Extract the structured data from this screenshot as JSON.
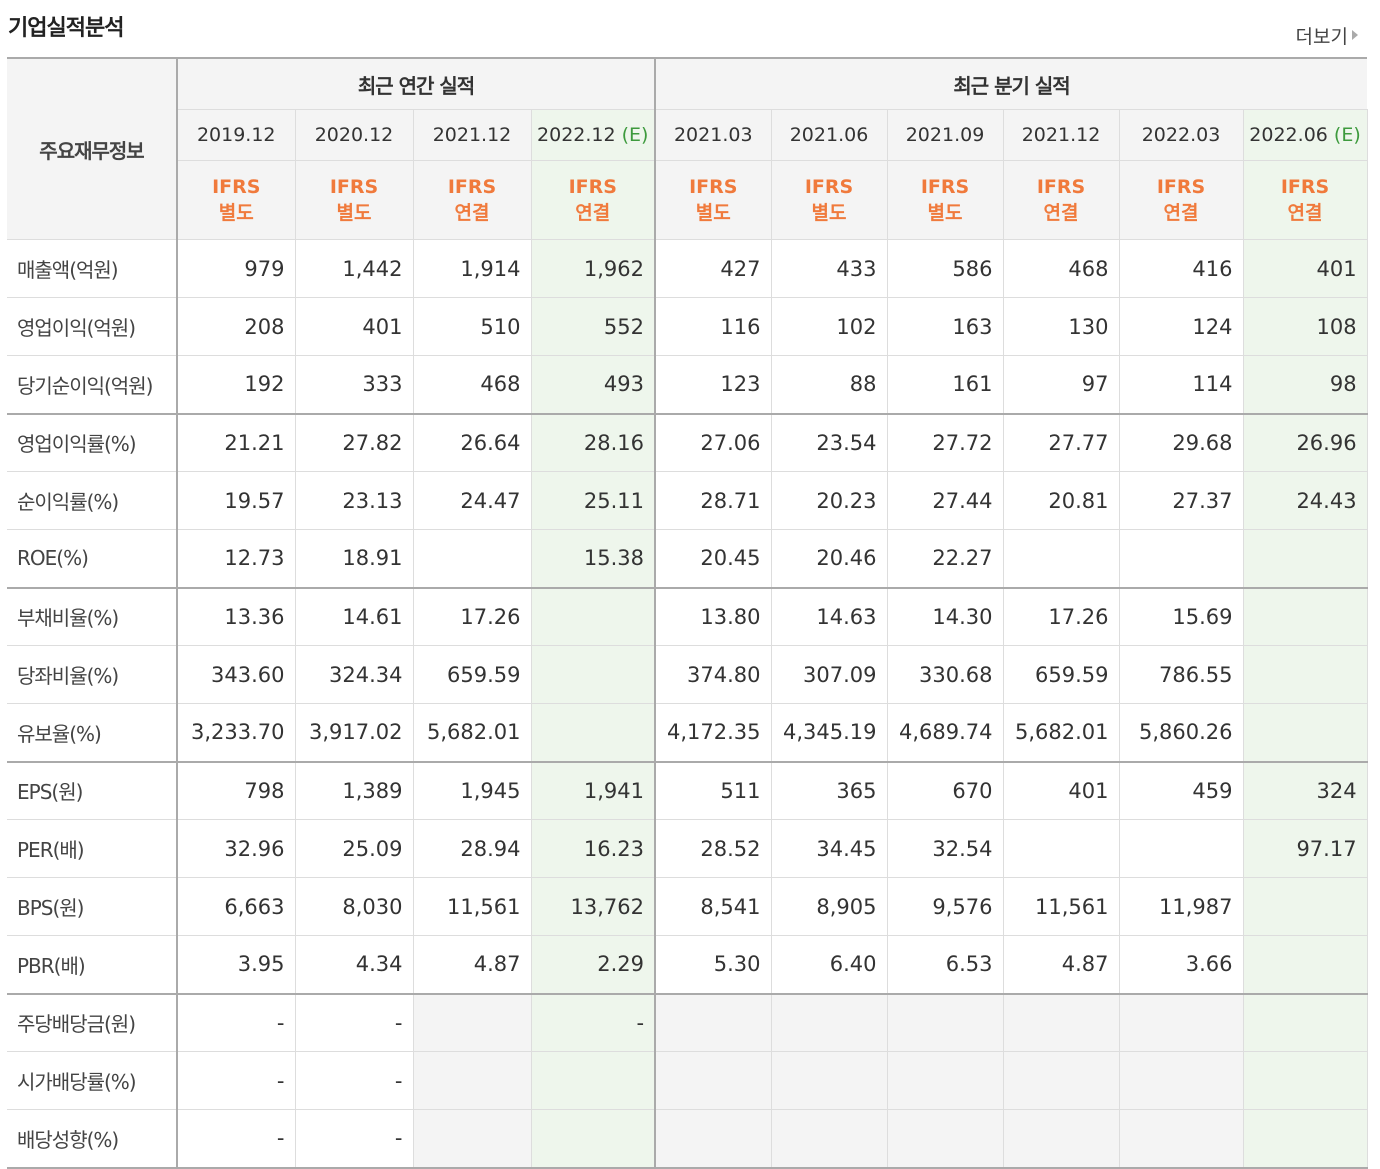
{
  "header": {
    "title": "기업실적분석",
    "more_label": "더보기"
  },
  "table": {
    "side_header": "주요재무정보",
    "annual_label": "최근 연간 실적",
    "quarter_label": "최근 분기 실적",
    "annual_periods": [
      {
        "date": "2019.12",
        "est": "",
        "type1": "IFRS",
        "type2": "별도"
      },
      {
        "date": "2020.12",
        "est": "",
        "type1": "IFRS",
        "type2": "별도"
      },
      {
        "date": "2021.12",
        "est": "",
        "type1": "IFRS",
        "type2": "연결"
      },
      {
        "date": "2022.12",
        "est": "(E)",
        "type1": "IFRS",
        "type2": "연결"
      }
    ],
    "quarter_periods": [
      {
        "date": "2021.03",
        "est": "",
        "type1": "IFRS",
        "type2": "별도"
      },
      {
        "date": "2021.06",
        "est": "",
        "type1": "IFRS",
        "type2": "별도"
      },
      {
        "date": "2021.09",
        "est": "",
        "type1": "IFRS",
        "type2": "별도"
      },
      {
        "date": "2021.12",
        "est": "",
        "type1": "IFRS",
        "type2": "연결"
      },
      {
        "date": "2022.03",
        "est": "",
        "type1": "IFRS",
        "type2": "연결"
      },
      {
        "date": "2022.06",
        "est": "(E)",
        "type1": "IFRS",
        "type2": "연결"
      }
    ],
    "rows": [
      {
        "label": "매출액(억원)",
        "values": [
          "979",
          "1,442",
          "1,914",
          "1,962",
          "427",
          "433",
          "586",
          "468",
          "416",
          "401"
        ]
      },
      {
        "label": "영업이익(억원)",
        "values": [
          "208",
          "401",
          "510",
          "552",
          "116",
          "102",
          "163",
          "130",
          "124",
          "108"
        ]
      },
      {
        "label": "당기순이익(억원)",
        "values": [
          "192",
          "333",
          "468",
          "493",
          "123",
          "88",
          "161",
          "97",
          "114",
          "98"
        ]
      },
      {
        "label": "영업이익률(%)",
        "values": [
          "21.21",
          "27.82",
          "26.64",
          "28.16",
          "27.06",
          "23.54",
          "27.72",
          "27.77",
          "29.68",
          "26.96"
        ]
      },
      {
        "label": "순이익률(%)",
        "values": [
          "19.57",
          "23.13",
          "24.47",
          "25.11",
          "28.71",
          "20.23",
          "27.44",
          "20.81",
          "27.37",
          "24.43"
        ]
      },
      {
        "label": "ROE(%)",
        "values": [
          "12.73",
          "18.91",
          "",
          "15.38",
          "20.45",
          "20.46",
          "22.27",
          "",
          "",
          ""
        ]
      },
      {
        "label": "부채비율(%)",
        "values": [
          "13.36",
          "14.61",
          "17.26",
          "",
          "13.80",
          "14.63",
          "14.30",
          "17.26",
          "15.69",
          ""
        ]
      },
      {
        "label": "당좌비율(%)",
        "values": [
          "343.60",
          "324.34",
          "659.59",
          "",
          "374.80",
          "307.09",
          "330.68",
          "659.59",
          "786.55",
          ""
        ]
      },
      {
        "label": "유보율(%)",
        "values": [
          "3,233.70",
          "3,917.02",
          "5,682.01",
          "",
          "4,172.35",
          "4,345.19",
          "4,689.74",
          "5,682.01",
          "5,860.26",
          ""
        ]
      },
      {
        "label": "EPS(원)",
        "values": [
          "798",
          "1,389",
          "1,945",
          "1,941",
          "511",
          "365",
          "670",
          "401",
          "459",
          "324"
        ]
      },
      {
        "label": "PER(배)",
        "values": [
          "32.96",
          "25.09",
          "28.94",
          "16.23",
          "28.52",
          "34.45",
          "32.54",
          "",
          "",
          "97.17"
        ]
      },
      {
        "label": "BPS(원)",
        "values": [
          "6,663",
          "8,030",
          "11,561",
          "13,762",
          "8,541",
          "8,905",
          "9,576",
          "11,561",
          "11,987",
          ""
        ]
      },
      {
        "label": "PBR(배)",
        "values": [
          "3.95",
          "4.34",
          "4.87",
          "2.29",
          "5.30",
          "6.40",
          "6.53",
          "4.87",
          "3.66",
          ""
        ]
      },
      {
        "label": "주당배당금(원)",
        "values": [
          "-",
          "-",
          "",
          "-",
          "",
          "",
          "",
          "",
          "",
          ""
        ]
      },
      {
        "label": "시가배당률(%)",
        "values": [
          "-",
          "-",
          "",
          "",
          "",
          "",
          "",
          "",
          "",
          ""
        ]
      },
      {
        "label": "배당성향(%)",
        "values": [
          "-",
          "-",
          "",
          "",
          "",
          "",
          "",
          "",
          "",
          ""
        ]
      }
    ]
  },
  "colors": {
    "ifrs_orange": "#f07a3c",
    "estimate_green": "#3d9a3d",
    "estimate_bg": "#eef6ec",
    "header_bg": "#f4f4f4"
  }
}
